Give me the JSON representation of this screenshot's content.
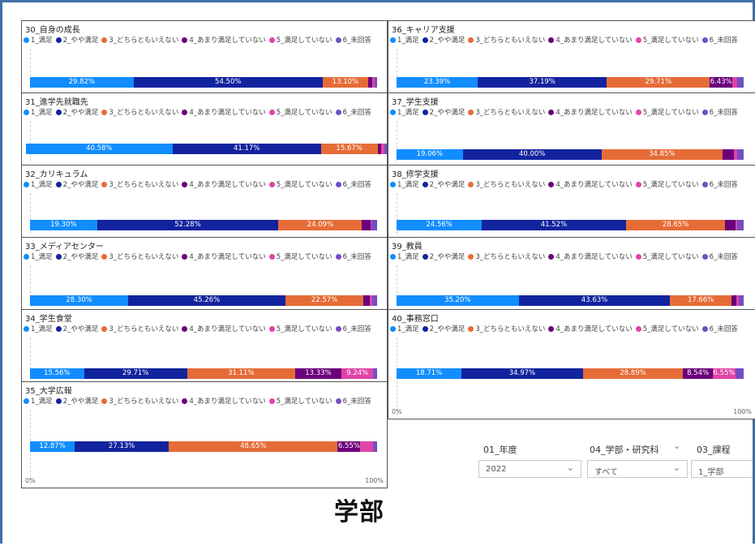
{
  "legend": [
    {
      "label": "1_満足",
      "color": "#118DFF"
    },
    {
      "label": "2_やや満足",
      "color": "#12239E"
    },
    {
      "label": "3_どちらともいえない",
      "color": "#E66C37"
    },
    {
      "label": "4_あまり満足していない",
      "color": "#6B007B"
    },
    {
      "label": "5_満足していない",
      "color": "#E044A7"
    },
    {
      "label": "6_未回答",
      "color": "#744EC2"
    }
  ],
  "axis": {
    "min_label": "0%",
    "max_label": "100%"
  },
  "chart_data": [
    {
      "type": "bar",
      "title": "30_自身の成長",
      "values": [
        29.82,
        54.5,
        13.1,
        1.2,
        0.6,
        0.78
      ],
      "labels": [
        "29.82%",
        "54.50%",
        "13.10%",
        "",
        "",
        ""
      ]
    },
    {
      "type": "bar",
      "title": "31_進学先就職先",
      "values": [
        40.58,
        41.17,
        15.67,
        1.1,
        0.9,
        0.58
      ],
      "labels": [
        "40.58%",
        "41.17%",
        "15.67%",
        "",
        "",
        ""
      ]
    },
    {
      "type": "bar",
      "title": "32_カリキュラム",
      "values": [
        19.3,
        52.28,
        24.09,
        2.4,
        0.3,
        1.63
      ],
      "labels": [
        "19.30%",
        "52.28%",
        "24.09%",
        "",
        "",
        ""
      ]
    },
    {
      "type": "bar",
      "title": "33_メディアセンター",
      "values": [
        28.3,
        45.26,
        22.57,
        1.8,
        0.7,
        1.37
      ],
      "labels": [
        "28.30%",
        "45.26%",
        "22.57%",
        "",
        "",
        ""
      ]
    },
    {
      "type": "bar",
      "title": "34_学生食堂",
      "values": [
        15.56,
        29.71,
        31.11,
        13.33,
        9.24,
        1.05
      ],
      "labels": [
        "15.56%",
        "29.71%",
        "31.11%",
        "13.33%",
        "9.24%",
        ""
      ]
    },
    {
      "type": "bar",
      "title": "35_大学広報",
      "values": [
        12.87,
        27.13,
        48.65,
        6.55,
        3.6,
        1.2
      ],
      "labels": [
        "12.87%",
        "27.13%",
        "48.65%",
        "6.55%",
        "",
        ""
      ]
    },
    {
      "type": "bar",
      "title": "36_キャリア支援",
      "values": [
        23.39,
        37.19,
        29.71,
        6.43,
        1.5,
        1.78
      ],
      "labels": [
        "23.39%",
        "37.19%",
        "29.71%",
        "6.43%",
        "",
        ""
      ]
    },
    {
      "type": "bar",
      "title": "37_学生支援",
      "values": [
        19.06,
        40.0,
        34.85,
        3.4,
        0.9,
        1.79
      ],
      "labels": [
        "19.06%",
        "40.00%",
        "34.85%",
        "",
        "",
        ""
      ]
    },
    {
      "type": "bar",
      "title": "38_修学支援",
      "values": [
        24.56,
        41.52,
        28.65,
        3.0,
        0.5,
        1.77
      ],
      "labels": [
        "24.56%",
        "41.52%",
        "28.65%",
        "",
        "",
        ""
      ]
    },
    {
      "type": "bar",
      "title": "39_教員",
      "values": [
        35.2,
        43.63,
        17.66,
        1.3,
        0.8,
        1.41
      ],
      "labels": [
        "35.20%",
        "43.63%",
        "17.66%",
        "",
        "",
        ""
      ]
    },
    {
      "type": "bar",
      "title": "40_事務窓口",
      "values": [
        18.71,
        34.97,
        28.89,
        8.54,
        6.55,
        2.34
      ],
      "labels": [
        "18.71%",
        "34.97%",
        "28.89%",
        "8.54%",
        "6.55%",
        ""
      ]
    }
  ],
  "slicers": {
    "year": {
      "label": "01_年度",
      "value": "2022"
    },
    "faculty": {
      "label": "04_学部・研究科",
      "value": "すべて"
    },
    "course": {
      "label": "03_課程",
      "value": "1_学部"
    }
  },
  "page_name": "学部"
}
